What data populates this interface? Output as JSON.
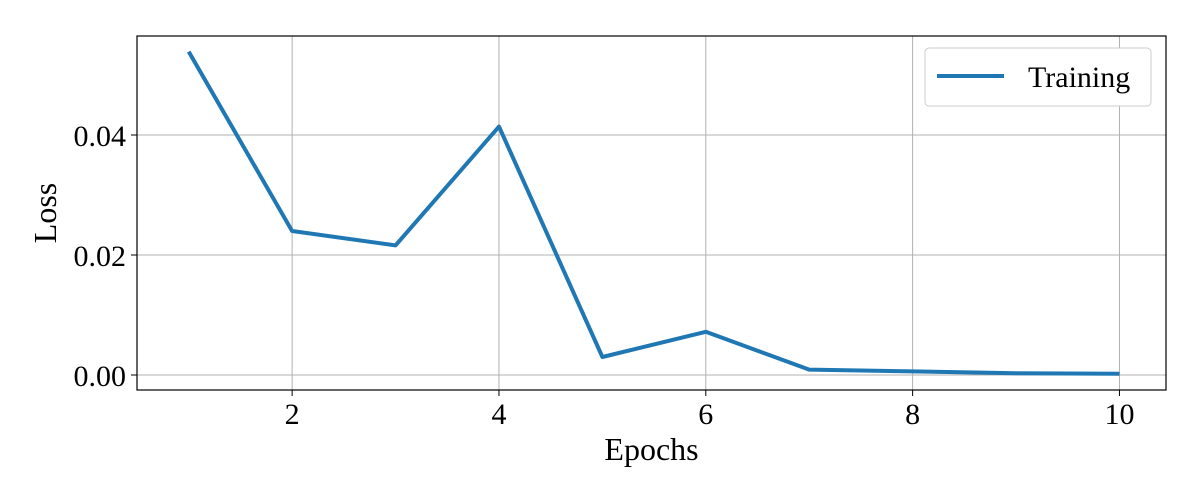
{
  "chart_data": {
    "type": "line",
    "title": "",
    "xlabel": "Epochs",
    "ylabel": "Loss",
    "xlim": [
      0.5,
      10.45
    ],
    "ylim": [
      -0.0025,
      0.0565
    ],
    "xticks": [
      2,
      4,
      6,
      8,
      10
    ],
    "xtick_labels": [
      "2",
      "4",
      "6",
      "8",
      "10"
    ],
    "yticks": [
      0.0,
      0.02,
      0.04
    ],
    "ytick_labels": [
      "0.00",
      "0.02",
      "0.04"
    ],
    "grid": true,
    "legend_position": "top-right",
    "series": [
      {
        "name": "Training",
        "color": "#1f77b4",
        "x": [
          1,
          2,
          3,
          4,
          5,
          6,
          7,
          8,
          9,
          10
        ],
        "y": [
          0.0539,
          0.024,
          0.0216,
          0.0414,
          0.003,
          0.0072,
          0.0009,
          0.0006,
          0.0003,
          0.0002
        ]
      }
    ]
  }
}
